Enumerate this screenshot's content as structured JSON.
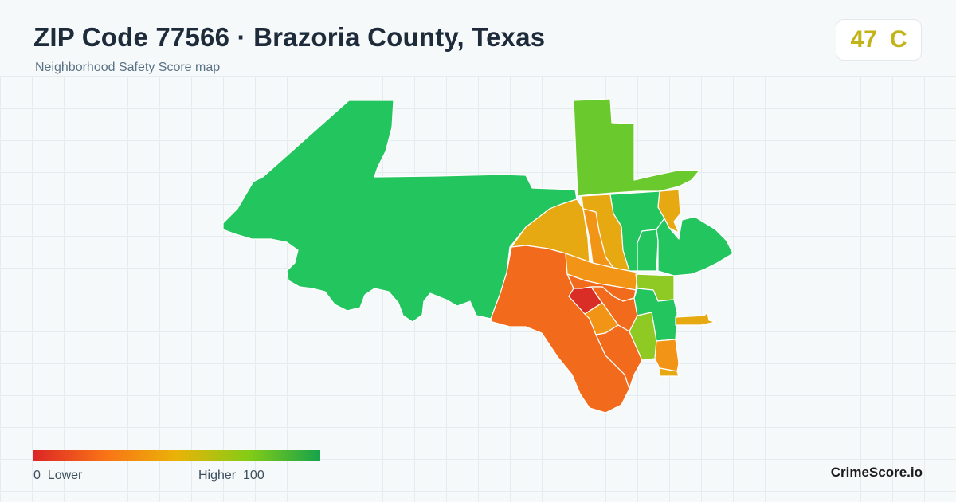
{
  "header": {
    "title": "ZIP Code 77566 · Brazoria County, Texas",
    "subtitle": "Neighborhood Safety Score map"
  },
  "score": {
    "value": "47",
    "grade": "C",
    "color": "#c2b318"
  },
  "legend": {
    "min_value": "0",
    "min_label": "Lower",
    "max_label": "Higher",
    "max_value": "100",
    "gradient_colors": [
      "#dc2626",
      "#f97316",
      "#eab308",
      "#84cc16",
      "#16a34a"
    ]
  },
  "brand": "CrimeScore.io",
  "map_colors": {
    "very_high": "#22c55e",
    "high": "#6ac92c",
    "mid_high": "#8fc924",
    "mid": "#e6a912",
    "mid_low": "#f29516",
    "low": "#f26b1c",
    "very_low": "#d92e25",
    "boundary": "#ffffff"
  }
}
